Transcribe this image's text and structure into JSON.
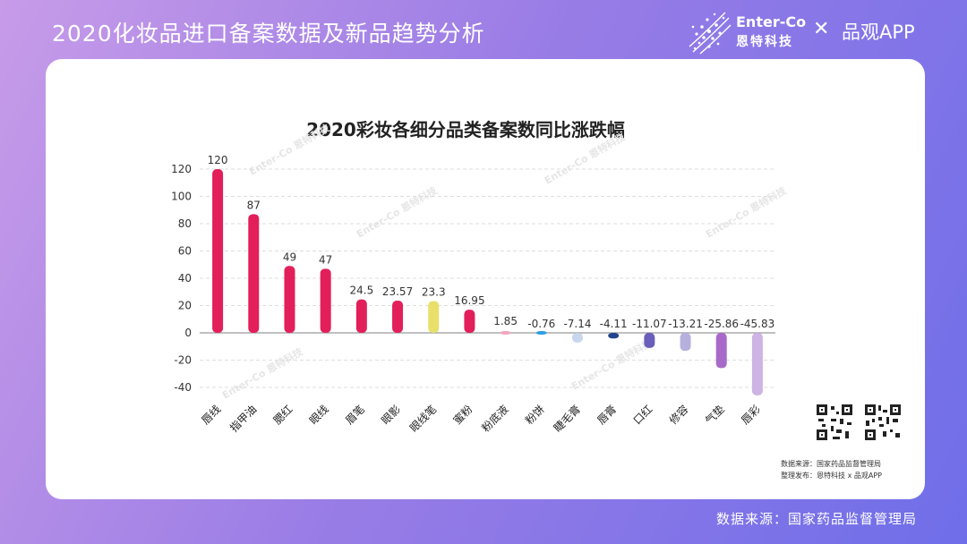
{
  "header": {
    "title": "2020化妆品进口备案数据及新品趋势分析",
    "brand_name": "Enter-Co",
    "brand_cn": "恩特科技",
    "cross": "✕",
    "partner": "品观APP"
  },
  "chart_data": {
    "type": "bar",
    "title": "2020彩妆各细分品类备案数同比涨跌幅",
    "xlabel": "",
    "ylabel": "",
    "categories": [
      "唇线",
      "指甲油",
      "腮红",
      "眼线",
      "眉笔",
      "眼影",
      "眼线笔",
      "蜜粉",
      "粉底液",
      "粉饼",
      "睫毛膏",
      "唇膏",
      "口红",
      "修容",
      "气垫",
      "唇彩"
    ],
    "values": [
      120,
      87,
      49,
      47,
      24.5,
      23.57,
      23.3,
      16.95,
      1.85,
      -0.76,
      -7.14,
      -4.11,
      -11.07,
      -13.21,
      -25.86,
      -45.83
    ],
    "value_labels": [
      "120",
      "87",
      "49",
      "47",
      "24.5",
      "23.57",
      "23.3",
      "16.95",
      "1.85",
      "-0.76",
      "-7.14",
      "-4.11",
      "-11.07",
      "-13.21",
      "-25.86",
      "-45.83"
    ],
    "bar_colors": [
      "#e21f5a",
      "#e21f5a",
      "#e21f5a",
      "#e21f5a",
      "#e21f5a",
      "#e21f5a",
      "#e8e06a",
      "#e21f5a",
      "#f3a5bf",
      "#2f9ee4",
      "#c8d6ee",
      "#23458c",
      "#6a5fba",
      "#b6b0de",
      "#a86ac8",
      "#cdb4e4"
    ],
    "y_ticks": [
      120,
      100,
      80,
      60,
      40,
      20,
      0,
      -20,
      -40
    ],
    "ylim": [
      -45.83,
      120
    ],
    "grid": true
  },
  "source_note": {
    "line1": "数据来源：国家药品监督管理局",
    "line2": "整理发布：恩特科技 x 品观APP"
  },
  "footer": {
    "text": "数据来源：国家药品监督管理局"
  },
  "watermark": "Enter-Co 恩特科技",
  "colors": {
    "accent": "#e21f5a",
    "bg_start": "#c79be8",
    "bg_end": "#6f6ee9"
  }
}
